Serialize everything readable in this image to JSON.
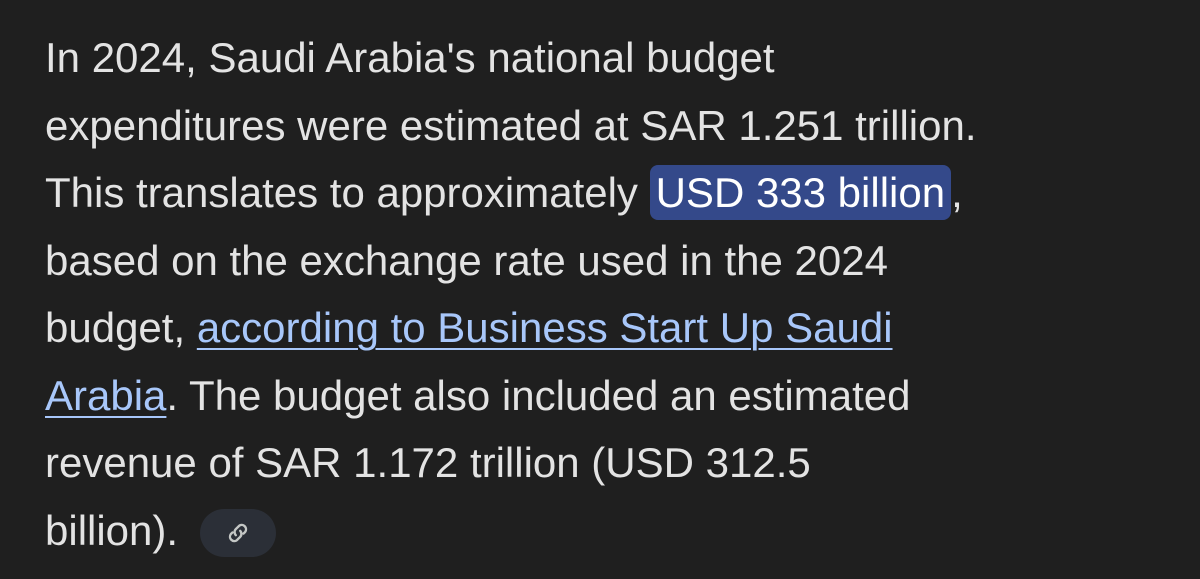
{
  "paragraph": {
    "lines": [
      {
        "runs": [
          {
            "text": "In 2024, Saudi Arabia's national budget",
            "style": "text"
          }
        ]
      },
      {
        "runs": [
          {
            "text": "expenditures were estimated at SAR 1.251 trillion.",
            "style": "text"
          }
        ]
      },
      {
        "runs": [
          {
            "text": "This translates to approximately ",
            "style": "text"
          },
          {
            "text": "USD 333 billion",
            "style": "highlight"
          },
          {
            "text": ",",
            "style": "text"
          }
        ]
      },
      {
        "runs": [
          {
            "text": "based on the exchange rate used in the 2024",
            "style": "text"
          }
        ]
      },
      {
        "runs": [
          {
            "text": "budget, ",
            "style": "text"
          },
          {
            "text": "according to Business Start Up Saudi",
            "style": "link"
          }
        ]
      },
      {
        "runs": [
          {
            "text": "Arabia",
            "style": "link"
          },
          {
            "text": ". The budget also included an estimated",
            "style": "text"
          }
        ]
      },
      {
        "runs": [
          {
            "text": "revenue of SAR 1.172 trillion (USD 312.5",
            "style": "text"
          }
        ]
      },
      {
        "runs": [
          {
            "text": "billion).",
            "style": "text"
          }
        ]
      }
    ]
  }
}
